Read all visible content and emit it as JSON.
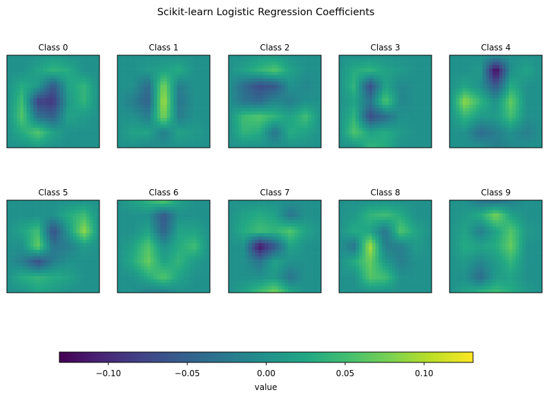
{
  "chart_data": {
    "type": "heatmap",
    "title": "Scikit-learn Logistic Regression Coefficients",
    "grid": false,
    "colormap": "viridis",
    "image_resolution": [
      28,
      28
    ],
    "note_values": "coarse 7x7 approximation of each 28x28 coefficient map, in data units",
    "panels": [
      {
        "title": "Class 0",
        "values": [
          [
            0,
            0,
            0,
            0.01,
            0,
            0,
            0
          ],
          [
            0,
            0,
            0.02,
            0.04,
            0.03,
            0,
            0
          ],
          [
            0,
            0.03,
            0.01,
            -0.06,
            0.02,
            0.04,
            0
          ],
          [
            0,
            0.05,
            -0.08,
            -0.09,
            0.01,
            0.04,
            0
          ],
          [
            0,
            0.06,
            -0.03,
            -0.05,
            0.02,
            0.01,
            0
          ],
          [
            0,
            0.03,
            0.06,
            0.02,
            0,
            0,
            0
          ],
          [
            0,
            0,
            0.01,
            0,
            0,
            0,
            0
          ]
        ]
      },
      {
        "title": "Class 1",
        "values": [
          [
            0,
            0,
            0,
            0,
            0,
            0,
            0
          ],
          [
            0,
            0,
            0.01,
            0.02,
            0.03,
            0,
            0
          ],
          [
            0,
            0,
            -0.04,
            0.08,
            -0.02,
            0,
            0
          ],
          [
            0,
            -0.02,
            -0.05,
            0.1,
            -0.03,
            0,
            0
          ],
          [
            0,
            0,
            -0.02,
            0.08,
            -0.02,
            0,
            0
          ],
          [
            0,
            0.02,
            0.02,
            -0.02,
            0.02,
            0.01,
            0
          ],
          [
            0,
            0,
            -0.01,
            0,
            0,
            0,
            0
          ]
        ]
      },
      {
        "title": "Class 2",
        "values": [
          [
            0,
            0,
            0.01,
            0.01,
            0,
            0,
            0
          ],
          [
            0,
            0.02,
            0.04,
            0.06,
            0.02,
            0,
            0
          ],
          [
            0,
            -0.04,
            -0.07,
            -0.06,
            0,
            -0.01,
            0
          ],
          [
            0,
            -0.03,
            -0.04,
            -0.01,
            -0.02,
            0,
            0
          ],
          [
            0,
            0.05,
            0.06,
            0.04,
            0.02,
            0.05,
            0
          ],
          [
            0,
            0.04,
            0.03,
            -0.03,
            0.03,
            0.02,
            0
          ],
          [
            0,
            0,
            0,
            0,
            0,
            0,
            0
          ]
        ]
      },
      {
        "title": "Class 3",
        "values": [
          [
            0,
            0,
            0,
            0,
            0,
            0,
            0
          ],
          [
            0,
            0.03,
            0.04,
            0.02,
            0.01,
            0,
            0
          ],
          [
            0,
            0.04,
            -0.07,
            0.02,
            -0.01,
            0,
            0
          ],
          [
            0,
            0.02,
            -0.03,
            0.06,
            -0.01,
            0,
            0
          ],
          [
            0,
            0.04,
            -0.07,
            -0.04,
            0,
            0,
            0
          ],
          [
            0,
            0.06,
            0.02,
            0.03,
            0.01,
            0,
            0
          ],
          [
            0,
            0,
            0.04,
            0.03,
            0,
            0,
            0
          ]
        ]
      },
      {
        "title": "Class 4",
        "values": [
          [
            0,
            0,
            0,
            0,
            0,
            0,
            0
          ],
          [
            0,
            0,
            0.01,
            -0.13,
            0,
            0.02,
            0
          ],
          [
            0,
            0.02,
            0,
            -0.06,
            0.03,
            0,
            0
          ],
          [
            0,
            0.09,
            0.04,
            0,
            0.07,
            0,
            0
          ],
          [
            0,
            0.04,
            0.01,
            0.01,
            0.05,
            0,
            0
          ],
          [
            0,
            0,
            -0.04,
            -0.02,
            0,
            -0.02,
            0
          ],
          [
            0,
            0,
            0,
            -0.02,
            -0.01,
            0,
            0
          ]
        ]
      },
      {
        "title": "Class 5",
        "values": [
          [
            0,
            0,
            0,
            0,
            0,
            0,
            0
          ],
          [
            0,
            0,
            0,
            0,
            0.03,
            0.05,
            0
          ],
          [
            0,
            0.02,
            0.05,
            -0.07,
            0.01,
            0.09,
            0
          ],
          [
            0,
            0,
            0.07,
            -0.03,
            -0.02,
            0.01,
            0
          ],
          [
            0,
            -0.02,
            -0.07,
            -0.02,
            0,
            0,
            0
          ],
          [
            0,
            0.03,
            0.04,
            0.03,
            0.02,
            0,
            0
          ],
          [
            0,
            0,
            0.02,
            0.01,
            0,
            0,
            0
          ]
        ]
      },
      {
        "title": "Class 6",
        "values": [
          [
            0,
            0.02,
            0.04,
            0.07,
            0.02,
            0,
            0
          ],
          [
            0,
            0,
            0,
            -0.06,
            0,
            0,
            0
          ],
          [
            0,
            0,
            0.02,
            -0.05,
            0.02,
            0.02,
            0
          ],
          [
            0,
            0.02,
            0.06,
            0,
            0.03,
            0.05,
            0
          ],
          [
            0,
            0.03,
            0.07,
            0.02,
            0.04,
            0.01,
            0
          ],
          [
            0,
            0,
            0.03,
            0.06,
            0.02,
            0,
            0
          ],
          [
            0,
            0,
            -0.02,
            -0.02,
            0,
            0,
            0
          ]
        ]
      },
      {
        "title": "Class 7",
        "values": [
          [
            0,
            0,
            0,
            0,
            0,
            0,
            0
          ],
          [
            0,
            0.02,
            0.03,
            0.02,
            -0.03,
            0,
            0
          ],
          [
            0,
            0.03,
            0.05,
            0.04,
            0.06,
            0.02,
            0
          ],
          [
            0,
            0,
            -0.12,
            -0.06,
            0.02,
            0,
            0
          ],
          [
            0,
            0,
            -0.03,
            0.02,
            0,
            0,
            0
          ],
          [
            0,
            0,
            0,
            0.01,
            -0.03,
            0,
            0
          ],
          [
            0,
            0.02,
            0.05,
            0.08,
            0.03,
            0,
            0
          ]
        ]
      },
      {
        "title": "Class 8",
        "values": [
          [
            0,
            0,
            0,
            0,
            0,
            0,
            0
          ],
          [
            0,
            0.01,
            0.04,
            0.05,
            0.03,
            0,
            0
          ],
          [
            0,
            0.03,
            0.02,
            -0.03,
            0.06,
            0.02,
            0
          ],
          [
            0,
            -0.03,
            0.1,
            -0.02,
            -0.02,
            0.01,
            0
          ],
          [
            0,
            0.03,
            0.07,
            0.01,
            -0.02,
            0,
            0
          ],
          [
            0,
            0,
            0.06,
            0.05,
            0,
            0,
            0
          ],
          [
            0,
            0,
            0,
            0,
            0,
            0,
            0
          ]
        ]
      },
      {
        "title": "Class 9",
        "values": [
          [
            0,
            0,
            -0.03,
            -0.04,
            -0.02,
            0,
            0
          ],
          [
            0,
            0.01,
            0.03,
            0.08,
            0.02,
            0,
            0
          ],
          [
            0,
            0.02,
            -0.02,
            0.02,
            0.06,
            0.01,
            0
          ],
          [
            0,
            0.03,
            0.02,
            0.03,
            0.07,
            0,
            0
          ],
          [
            0,
            0.01,
            -0.01,
            0.01,
            0.04,
            0,
            0
          ],
          [
            0,
            0,
            -0.04,
            0.01,
            0.02,
            0,
            0
          ],
          [
            0,
            0.02,
            0.04,
            0.05,
            0.03,
            0.01,
            0
          ]
        ]
      }
    ],
    "colorbar": {
      "label": "value",
      "orientation": "horizontal",
      "range": [
        -0.131,
        0.131
      ],
      "ticks": [
        -0.1,
        -0.05,
        0.0,
        0.05,
        0.1
      ],
      "tick_labels": [
        "−0.10",
        "−0.05",
        "0.00",
        "0.05",
        "0.10"
      ]
    }
  }
}
